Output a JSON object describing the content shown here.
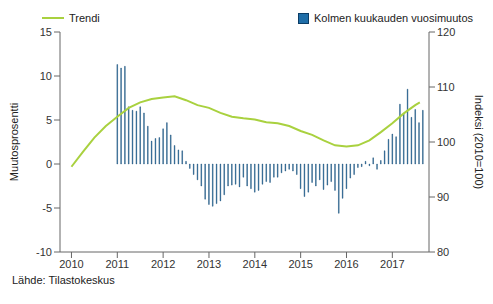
{
  "chart_data": {
    "type": "bar",
    "y_label": "Muutosprosentti",
    "y2_label": "Indeksi (2010=100)",
    "source": "Lähde: Tilastokeskus",
    "xlim": [
      2009.75,
      2017.8
    ],
    "xticks": [
      2010,
      2011,
      2012,
      2013,
      2014,
      2015,
      2016,
      2017
    ],
    "ylim": [
      -10,
      15
    ],
    "yticks": [
      -10,
      -5,
      0,
      5,
      10,
      15
    ],
    "y2lim": [
      80,
      120
    ],
    "y2ticks": [
      80,
      90,
      100,
      110,
      120
    ],
    "grid": false,
    "legend": "top",
    "series": [
      {
        "name": "Trendi",
        "type": "line",
        "axis": "y2",
        "color": "#a9d13f",
        "x": [
          2010.0,
          2010.25,
          2010.5,
          2010.75,
          2011.0,
          2011.25,
          2011.5,
          2011.75,
          2012.0,
          2012.25,
          2012.5,
          2012.75,
          2013.0,
          2013.25,
          2013.5,
          2013.75,
          2014.0,
          2014.25,
          2014.5,
          2014.75,
          2015.0,
          2015.25,
          2015.5,
          2015.75,
          2016.0,
          2016.25,
          2016.5,
          2016.75,
          2017.0,
          2017.25,
          2017.5,
          2017.6
        ],
        "values": [
          95.5,
          98.2,
          100.8,
          102.9,
          104.6,
          106.2,
          107.2,
          107.8,
          108.1,
          108.3,
          107.6,
          106.7,
          106.2,
          105.3,
          104.6,
          104.3,
          104.1,
          103.6,
          103.4,
          102.9,
          102.0,
          101.3,
          100.3,
          99.4,
          99.2,
          99.4,
          100.3,
          101.8,
          103.4,
          105.2,
          106.7,
          107.2
        ]
      },
      {
        "name": "Kolmen kuukauden vuosimuutos",
        "type": "bar",
        "color": "#1f6ea8",
        "x": [
          2011.0,
          2011.083,
          2011.167,
          2011.25,
          2011.333,
          2011.417,
          2011.5,
          2011.583,
          2011.667,
          2011.75,
          2011.833,
          2011.917,
          2012.0,
          2012.083,
          2012.167,
          2012.25,
          2012.333,
          2012.417,
          2012.5,
          2012.583,
          2012.667,
          2012.75,
          2012.833,
          2012.917,
          2013.0,
          2013.083,
          2013.167,
          2013.25,
          2013.333,
          2013.417,
          2013.5,
          2013.583,
          2013.667,
          2013.75,
          2013.833,
          2013.917,
          2014.0,
          2014.083,
          2014.167,
          2014.25,
          2014.333,
          2014.417,
          2014.5,
          2014.583,
          2014.667,
          2014.75,
          2014.833,
          2014.917,
          2015.0,
          2015.083,
          2015.167,
          2015.25,
          2015.333,
          2015.417,
          2015.5,
          2015.583,
          2015.667,
          2015.75,
          2015.833,
          2015.917,
          2016.0,
          2016.083,
          2016.167,
          2016.25,
          2016.333,
          2016.417,
          2016.5,
          2016.583,
          2016.667,
          2016.75,
          2016.833,
          2016.917,
          2017.0,
          2017.083,
          2017.167,
          2017.25,
          2017.333,
          2017.417,
          2017.5,
          2017.583,
          2017.667
        ],
        "values": [
          11.3,
          10.9,
          11.1,
          6.5,
          6.1,
          6.0,
          6.5,
          5.8,
          4.3,
          2.6,
          2.9,
          3.0,
          4.0,
          4.7,
          3.3,
          2.1,
          1.6,
          1.5,
          0.3,
          -0.5,
          -1.2,
          -1.8,
          -2.5,
          -4.0,
          -4.6,
          -4.8,
          -4.5,
          -4.2,
          -3.5,
          -2.5,
          -2.4,
          -2.3,
          -2.6,
          -1.5,
          -2.5,
          -2.8,
          -3.2,
          -3.0,
          -2.3,
          -2.0,
          -2.1,
          -1.5,
          -1.5,
          -1.0,
          -0.8,
          -0.6,
          -0.8,
          -1.2,
          -2.8,
          -3.7,
          -3.2,
          -2.1,
          -2.5,
          -1.8,
          -2.9,
          -2.4,
          -2.0,
          -3.0,
          -5.6,
          -3.9,
          -2.8,
          -1.6,
          -1.2,
          -0.4,
          -0.3,
          0.3,
          -0.2,
          0.7,
          -0.6,
          0.4,
          1.5,
          2.8,
          3.4,
          3.1,
          6.8,
          5.7,
          8.5,
          5.3,
          6.2,
          4.7,
          6.1
        ]
      }
    ]
  }
}
